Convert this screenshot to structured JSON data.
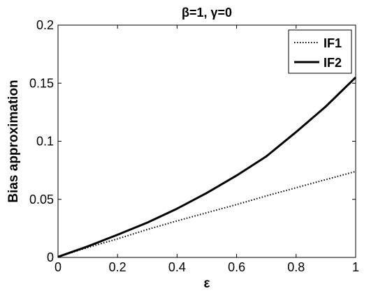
{
  "chart_data": {
    "type": "line",
    "title": "β=1, γ=0",
    "xlabel": "ε",
    "ylabel": "Bias approximation",
    "xlim": [
      0,
      1
    ],
    "ylim": [
      0,
      0.2
    ],
    "xticks": [
      "0",
      "0.2",
      "0.4",
      "0.6",
      "0.8",
      "1"
    ],
    "yticks": [
      "0",
      "0.05",
      "0.1",
      "0.15",
      "0.2"
    ],
    "grid": false,
    "legend_position": "top-right",
    "series": [
      {
        "name": "IF1",
        "line_style": "dotted",
        "color": "#000000",
        "x": [
          0,
          0.1,
          0.2,
          0.3,
          0.4,
          0.5,
          0.6,
          0.7,
          0.8,
          0.9,
          1.0
        ],
        "y": [
          0.0005,
          0.0085,
          0.016,
          0.024,
          0.0315,
          0.0385,
          0.0455,
          0.053,
          0.06,
          0.067,
          0.074
        ]
      },
      {
        "name": "IF2",
        "line_style": "solid",
        "color": "#000000",
        "x": [
          0,
          0.1,
          0.2,
          0.3,
          0.4,
          0.5,
          0.6,
          0.7,
          0.8,
          0.9,
          1.0
        ],
        "y": [
          0.0005,
          0.0095,
          0.0195,
          0.03,
          0.042,
          0.0555,
          0.0705,
          0.087,
          0.108,
          0.13,
          0.155
        ]
      }
    ]
  }
}
